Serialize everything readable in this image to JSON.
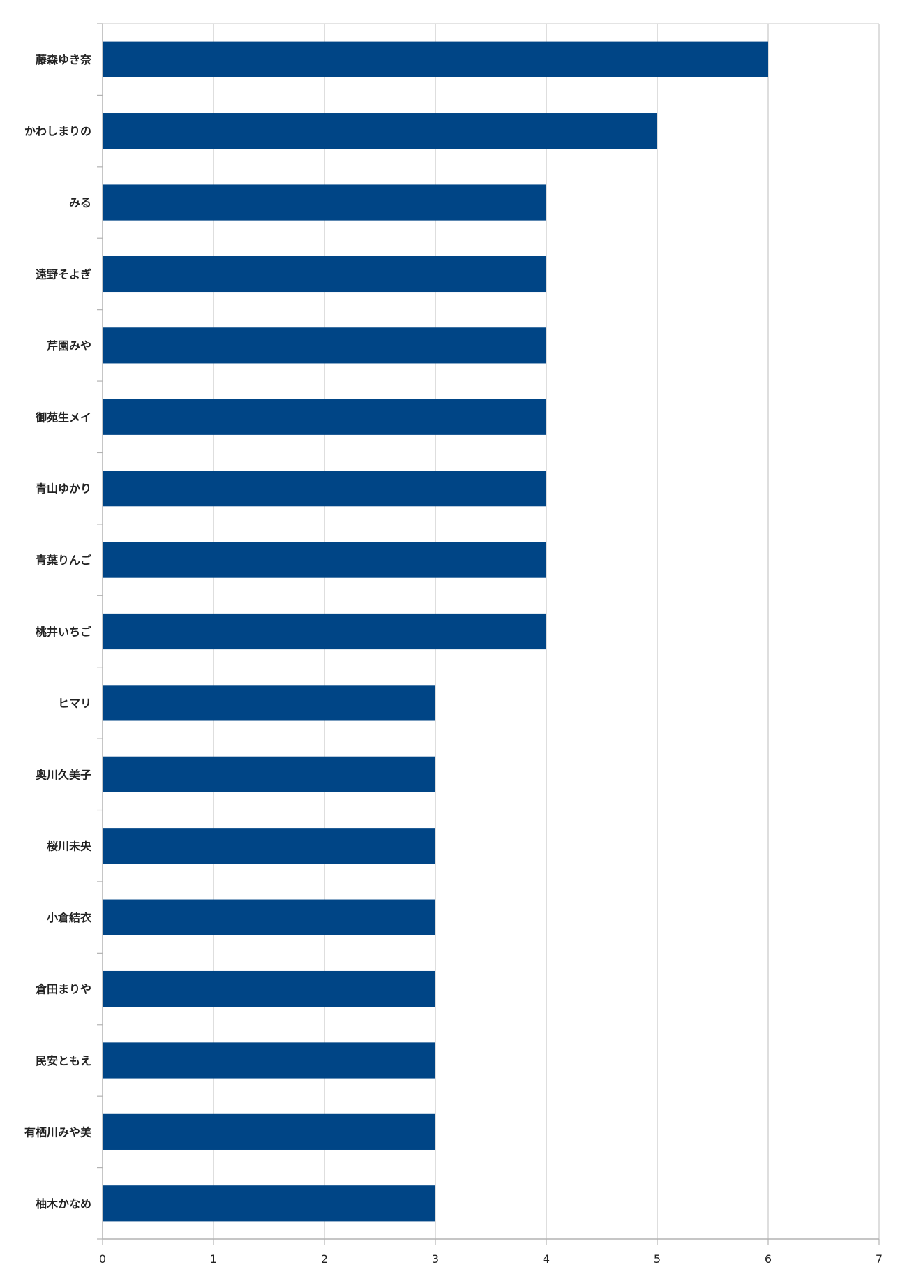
{
  "chart_data": {
    "type": "bar",
    "orientation": "horizontal",
    "categories": [
      "藤森ゆき奈",
      "かわしまりの",
      "みる",
      "遠野そよぎ",
      "芹園みや",
      "御苑生メイ",
      "青山ゆかり",
      "青葉りんご",
      "桃井いちご",
      "ヒマリ",
      "奥川久美子",
      "桜川未央",
      "小倉結衣",
      "倉田まりや",
      "民安ともえ",
      "有栖川みや美",
      "柚木かなめ"
    ],
    "values": [
      6,
      5,
      4,
      4,
      4,
      4,
      4,
      4,
      4,
      3,
      3,
      3,
      3,
      3,
      3,
      3,
      3
    ],
    "xlim": [
      0,
      7
    ],
    "xticks": [
      "0",
      "1",
      "2",
      "3",
      "4",
      "5",
      "6",
      "7"
    ],
    "grid": "vertical",
    "legend": "none",
    "colors": {
      "bar": "#004586",
      "grid": "#c8c8c8",
      "axis": "#b3b3b3",
      "text": "#222222"
    }
  }
}
